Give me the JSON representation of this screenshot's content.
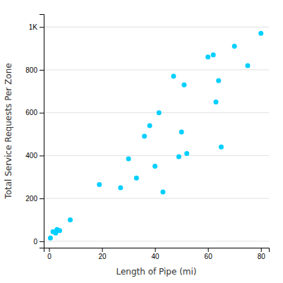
{
  "chart_data": {
    "type": "scatter",
    "xlabel": "Length of Pipe (mi)",
    "ylabel": "Total Service Requests Per Zone",
    "x": [
      0.5,
      1.5,
      2.5,
      3.0,
      4.0,
      8.0,
      19.0,
      27.0,
      30.0,
      33.0,
      36.0,
      38.0,
      40.0,
      41.5,
      43.0,
      47.0,
      49.0,
      50.0,
      51.0,
      52.0,
      60.0,
      62.0,
      63.0,
      64.0,
      65.0,
      70.0,
      75.0,
      80.0
    ],
    "values": [
      15,
      45,
      38,
      55,
      50,
      100,
      265,
      250,
      385,
      295,
      490,
      540,
      350,
      600,
      230,
      770,
      395,
      510,
      730,
      410,
      860,
      870,
      650,
      750,
      440,
      910,
      820,
      970
    ],
    "color": "#00CFFF",
    "xlim": [
      -2,
      83
    ],
    "ylim": [
      -30,
      1060
    ],
    "xticks": [
      0,
      20,
      40,
      60,
      80
    ],
    "yticks": [
      0,
      200,
      400,
      600,
      800,
      {
        "value": 1000,
        "label": "1K"
      }
    ],
    "grid": true
  }
}
